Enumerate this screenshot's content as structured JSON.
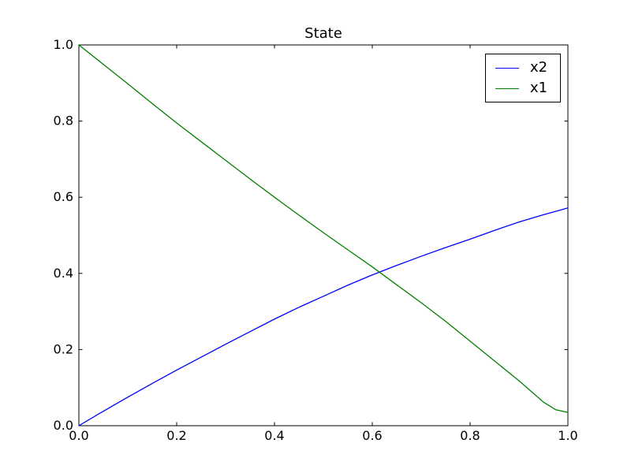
{
  "figure": {
    "background": "#ffffff"
  },
  "chart_data": {
    "type": "line",
    "title": "State",
    "xlabel": "",
    "ylabel": "",
    "xlim": [
      0.0,
      1.0
    ],
    "ylim": [
      0.0,
      1.0
    ],
    "grid": false,
    "legend_position": "upper right",
    "axis_color": "#000000",
    "x_ticks": [
      "0.0",
      "0.2",
      "0.4",
      "0.6",
      "0.8",
      "1.0"
    ],
    "y_ticks": [
      "0.0",
      "0.2",
      "0.4",
      "0.6",
      "0.8",
      "1.0"
    ],
    "x": [
      0,
      0.05,
      0.1,
      0.15,
      0.2,
      0.25,
      0.3,
      0.35,
      0.4,
      0.45,
      0.5,
      0.55,
      0.6,
      0.65,
      0.7,
      0.75,
      0.8,
      0.85,
      0.9,
      0.95,
      0.975,
      1.0
    ],
    "series": [
      {
        "name": "x2",
        "color": "#0000ff",
        "values": [
          0.0,
          0.038,
          0.075,
          0.111,
          0.146,
          0.18,
          0.214,
          0.247,
          0.28,
          0.311,
          0.34,
          0.369,
          0.396,
          0.421,
          0.445,
          0.468,
          0.49,
          0.513,
          0.535,
          0.554,
          0.563,
          0.572
        ]
      },
      {
        "name": "x1",
        "color": "#008000",
        "values": [
          1.0,
          0.949,
          0.898,
          0.846,
          0.795,
          0.746,
          0.697,
          0.648,
          0.6,
          0.553,
          0.507,
          0.462,
          0.417,
          0.37,
          0.323,
          0.274,
          0.222,
          0.17,
          0.118,
          0.062,
          0.042,
          0.035
        ]
      }
    ]
  }
}
